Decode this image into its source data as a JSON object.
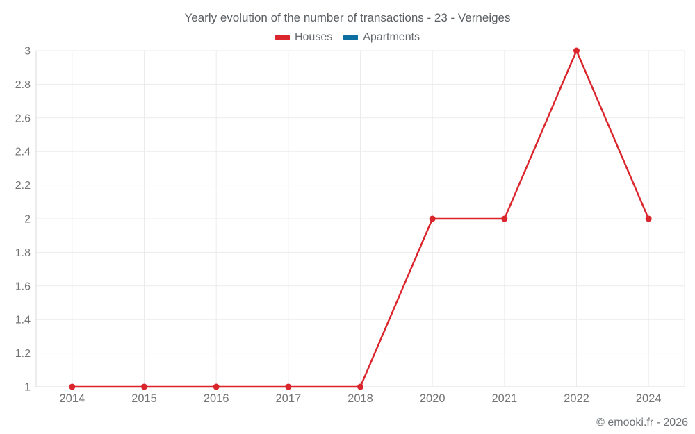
{
  "title": "Yearly evolution of the number of transactions - 23 - Verneiges",
  "footer": "© emooki.fr - 2026",
  "chart_data": {
    "type": "line",
    "title": "Yearly evolution of the number of transactions - 23 - Verneiges",
    "categories": [
      "2014",
      "2015",
      "2016",
      "2017",
      "2018",
      "2020",
      "2021",
      "2022",
      "2024"
    ],
    "series": [
      {
        "name": "Houses",
        "color": "#d9252b",
        "values": [
          1,
          1,
          1,
          1,
          1,
          2,
          2,
          3,
          2
        ]
      },
      {
        "name": "Apartments",
        "color": "#0d6fa1",
        "values": []
      }
    ],
    "xlabel": "",
    "ylabel": "",
    "ylim": [
      1,
      3
    ],
    "yticks": [
      1,
      1.2,
      1.4,
      1.6,
      1.8,
      2,
      2.2,
      2.4,
      2.6,
      2.8,
      3
    ],
    "grid": true,
    "legend_position": "top"
  },
  "colors": {
    "grid": "#ebebeb",
    "axis_border": "#d9d9d9",
    "tick_text": "#737373"
  }
}
